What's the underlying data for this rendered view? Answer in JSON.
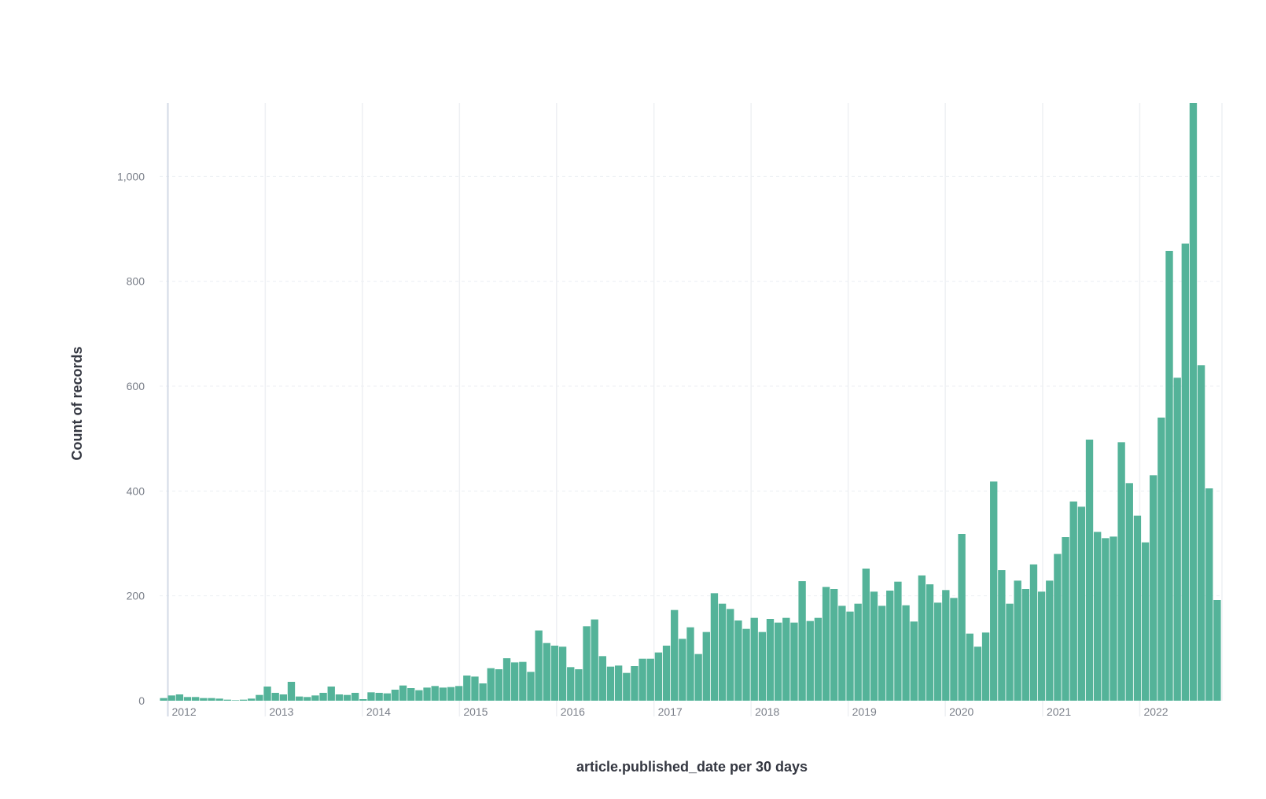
{
  "chart_data": {
    "type": "bar",
    "title": "",
    "xlabel": "article.published_date per 30 days",
    "ylabel": "Count of records",
    "x_tick_labels": [
      "2012",
      "2013",
      "2014",
      "2015",
      "2016",
      "2017",
      "2018",
      "2019",
      "2020",
      "2021",
      "2022"
    ],
    "y_tick_labels": [
      "0",
      "200",
      "400",
      "600",
      "800",
      "1,000"
    ],
    "y_ticks": [
      0,
      200,
      400,
      600,
      800,
      1000
    ],
    "ylim": [
      0,
      1140
    ],
    "bin_days": 30,
    "grid": true,
    "legend": "none",
    "bar_color": "#54b399",
    "series": [
      {
        "start_date": "2011-12-01",
        "values": [
          5,
          10,
          12,
          7,
          7,
          5,
          5,
          4,
          2,
          1,
          2,
          4,
          11,
          27,
          15,
          12,
          36,
          8,
          7,
          10,
          15,
          27,
          12,
          11,
          15,
          3,
          16,
          15,
          14,
          21,
          29,
          24,
          20,
          25,
          28,
          25,
          26,
          28,
          48,
          46,
          33,
          62,
          60,
          81,
          73,
          74,
          55,
          134,
          110,
          105,
          103,
          64,
          60,
          142,
          155,
          85,
          65,
          67,
          53,
          66,
          80,
          80,
          92,
          105,
          173,
          118,
          140,
          89,
          131,
          205,
          185,
          175,
          153,
          137,
          158,
          131,
          156,
          149,
          158,
          149,
          228,
          152,
          158,
          217,
          213,
          181,
          170,
          185,
          252,
          208,
          181,
          210,
          227,
          182,
          151,
          239,
          222,
          187,
          211,
          196,
          318,
          128,
          103,
          130,
          418,
          249,
          185,
          229,
          213,
          260,
          208,
          229,
          280,
          312,
          380,
          370,
          498,
          322,
          310,
          313,
          493,
          415,
          353,
          302,
          430,
          540,
          858,
          616,
          872,
          1148,
          640,
          405,
          192
        ]
      }
    ]
  }
}
